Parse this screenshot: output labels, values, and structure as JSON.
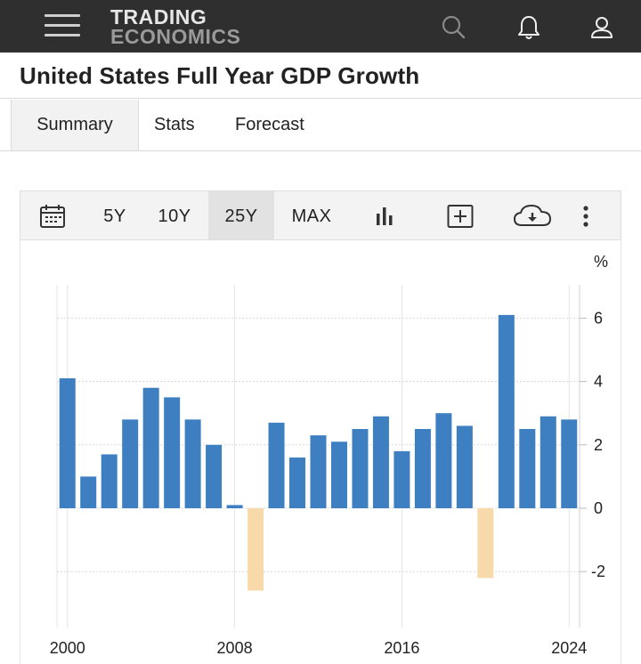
{
  "header": {
    "logo_line1": "TRADING",
    "logo_line2": "ECONOMICS",
    "icons": [
      "menu-icon",
      "search-icon",
      "bell-icon",
      "user-icon"
    ]
  },
  "page": {
    "title": "United States Full Year GDP Growth"
  },
  "tabs": [
    {
      "label": "Summary",
      "active": true
    },
    {
      "label": "Stats",
      "active": false
    },
    {
      "label": "Forecast",
      "active": false
    }
  ],
  "toolbar": {
    "ranges": [
      {
        "label": "5Y",
        "active": false
      },
      {
        "label": "10Y",
        "active": false
      },
      {
        "label": "25Y",
        "active": true
      },
      {
        "label": "MAX",
        "active": false
      }
    ],
    "icons": [
      "calendar-icon",
      "bar-chart-icon",
      "add-compare-icon",
      "download-icon",
      "more-icon"
    ]
  },
  "colors": {
    "topbar": "#2f2f2f",
    "bar_positive": "#3d7fc1",
    "bar_negative": "#f8d9a9",
    "grid": "#d8d8d8"
  },
  "chart_data": {
    "type": "bar",
    "title": "United States Full Year GDP Growth",
    "unit_label": "%",
    "x": [
      2000,
      2001,
      2002,
      2003,
      2004,
      2005,
      2006,
      2007,
      2008,
      2009,
      2010,
      2011,
      2012,
      2013,
      2014,
      2015,
      2016,
      2017,
      2018,
      2019,
      2020,
      2021,
      2022,
      2023,
      2024
    ],
    "values": [
      4.1,
      1.0,
      1.7,
      2.8,
      3.8,
      3.5,
      2.8,
      2.0,
      0.1,
      -2.6,
      2.7,
      1.6,
      2.3,
      2.1,
      2.5,
      2.9,
      1.8,
      2.5,
      3.0,
      2.6,
      -2.2,
      6.1,
      2.5,
      2.9,
      2.8
    ],
    "x_tick_labels": [
      "2000",
      "2008",
      "2016",
      "2024"
    ],
    "x_ticks": [
      2000,
      2008,
      2016,
      2024
    ],
    "y_tick_labels": [
      "6",
      "4",
      "2",
      "0",
      "-2"
    ],
    "y_ticks": [
      6,
      4,
      2,
      0,
      -2
    ],
    "ylim": [
      -3.5,
      7.0
    ],
    "grid": true,
    "y_axis_position": "right"
  }
}
